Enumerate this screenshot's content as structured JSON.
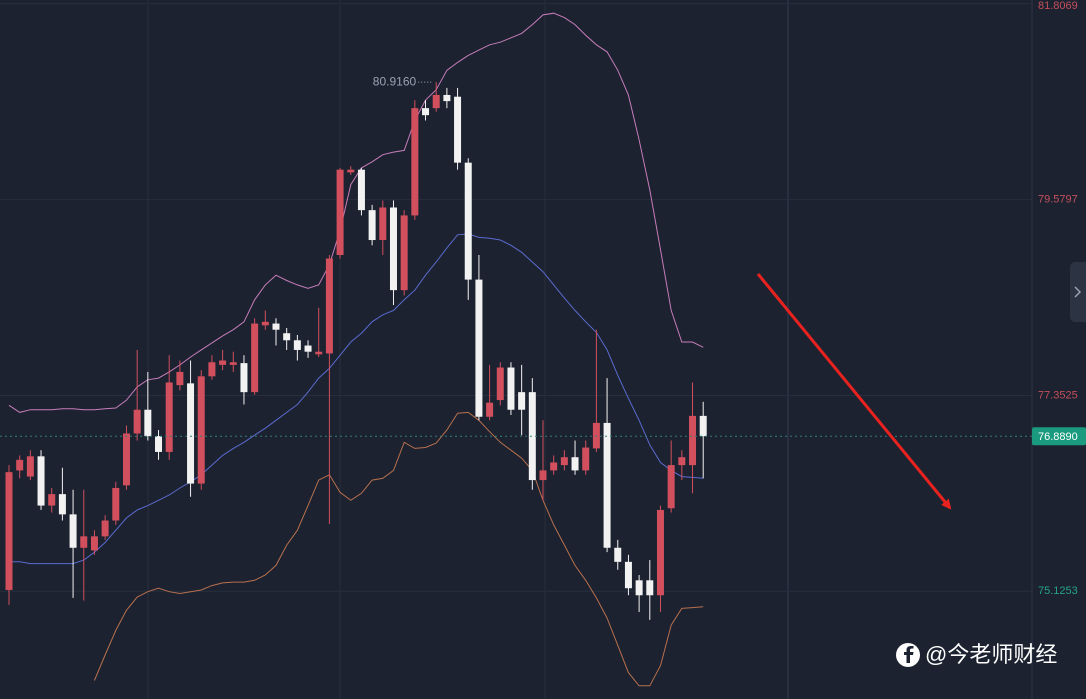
{
  "chart_data": {
    "type": "candlestick",
    "ylim": [
      73.9,
      81.85
    ],
    "yticks": [
      81.8069,
      79.5797,
      77.3525,
      75.1253
    ],
    "grid": true,
    "up_color": "#d24f5d",
    "down_color": "#f2f2f2",
    "up_tick_color": "#c4505c",
    "down_tick_color": "#25a387",
    "open": [
      75.14,
      76.5,
      76.43,
      76.66,
      76.1,
      76.23,
      76.0,
      75.62,
      75.59,
      75.75,
      75.93,
      76.33,
      76.92,
      77.19,
      76.89,
      76.71,
      77.47,
      77.49,
      76.35,
      77.57,
      77.7,
      77.7,
      77.72,
      77.39,
      78.15,
      78.17,
      78.06,
      77.98,
      77.92,
      77.82,
      77.83,
      78.95,
      79.89,
      79.92,
      79.46,
      79.12,
      79.49,
      78.55,
      79.4,
      80.62,
      80.62,
      80.77,
      80.75,
      80.0,
      78.67,
      77.11,
      77.3,
      77.67,
      77.39,
      77.39,
      76.39,
      76.5,
      76.56,
      76.65,
      76.5,
      76.75,
      77.04,
      75.62,
      75.46,
      75.25,
      75.25,
      75.08,
      76.07,
      76.56,
      76.56,
      77.12
    ],
    "high": [
      76.56,
      76.67,
      76.73,
      76.73,
      76.3,
      76.53,
      76.28,
      76.28,
      75.82,
      75.99,
      76.37,
      77.01,
      77.87,
      77.62,
      76.96,
      77.81,
      77.75,
      77.75,
      77.64,
      77.81,
      77.87,
      77.85,
      77.81,
      78.23,
      78.32,
      78.23,
      78.12,
      78.04,
      77.98,
      78.35,
      78.95,
      79.94,
      79.96,
      79.94,
      79.52,
      79.57,
      79.57,
      79.46,
      80.71,
      80.71,
      80.916,
      80.85,
      80.85,
      80.05,
      78.95,
      77.7,
      77.73,
      77.73,
      77.7,
      77.55,
      77.07,
      76.67,
      76.73,
      76.84,
      76.84,
      78.1,
      77.55,
      75.71,
      75.54,
      75.31,
      75.48,
      76.1,
      76.84,
      76.73,
      77.5,
      77.28
    ],
    "low": [
      74.97,
      76.41,
      76.39,
      76.05,
      76.02,
      75.93,
      75.05,
      75.02,
      75.54,
      75.71,
      75.88,
      76.28,
      76.84,
      76.84,
      76.62,
      76.62,
      77.41,
      76.2,
      76.28,
      77.53,
      77.64,
      77.62,
      77.25,
      77.36,
      78.1,
      77.92,
      77.87,
      77.75,
      77.78,
      77.79,
      75.89,
      78.91,
      79.86,
      79.4,
      79.06,
      78.95,
      78.38,
      78.49,
      79.35,
      80.48,
      80.58,
      80.62,
      79.92,
      78.44,
      77.07,
      77.07,
      77.24,
      77.13,
      76.9,
      76.28,
      76.16,
      76.45,
      76.5,
      76.45,
      76.45,
      76.71,
      75.57,
      75.37,
      75.08,
      74.89,
      74.8,
      74.89,
      76.02,
      76.39,
      76.24,
      76.41
    ],
    "close": [
      76.48,
      76.62,
      76.66,
      76.1,
      76.23,
      76.0,
      75.62,
      75.75,
      75.75,
      75.93,
      76.3,
      76.92,
      77.19,
      76.89,
      76.71,
      77.5,
      77.62,
      76.35,
      77.57,
      77.73,
      77.75,
      77.73,
      77.39,
      78.17,
      78.19,
      78.1,
      77.98,
      77.87,
      77.85,
      77.85,
      78.91,
      79.92,
      79.92,
      79.46,
      79.12,
      79.49,
      78.55,
      79.4,
      80.62,
      80.54,
      80.77,
      80.7,
      80.0,
      78.67,
      77.11,
      77.27,
      77.67,
      77.19,
      77.19,
      76.39,
      76.5,
      76.59,
      76.65,
      76.5,
      76.76,
      77.04,
      75.62,
      75.46,
      75.16,
      75.08,
      75.08,
      76.05,
      76.56,
      76.65,
      77.12,
      76.889
    ],
    "lines": [
      {
        "color": "#c77dba",
        "values": [
          77.24,
          77.16,
          77.19,
          77.19,
          77.19,
          77.2,
          77.2,
          77.19,
          77.19,
          77.2,
          77.21,
          77.3,
          77.45,
          77.53,
          77.55,
          77.62,
          77.7,
          77.79,
          77.87,
          77.95,
          78.03,
          78.1,
          78.19,
          78.44,
          78.61,
          78.72,
          78.66,
          78.61,
          78.57,
          78.61,
          78.84,
          79.23,
          79.75,
          79.94,
          80.01,
          80.09,
          80.12,
          80.14,
          80.48,
          80.71,
          80.83,
          81.05,
          81.14,
          81.22,
          81.28,
          81.34,
          81.37,
          81.42,
          81.47,
          81.57,
          81.68,
          81.7,
          81.65,
          81.57,
          81.45,
          81.34,
          81.26,
          81.05,
          80.77,
          80.26,
          79.69,
          79.01,
          78.32,
          77.96,
          77.96,
          77.9
        ]
      },
      {
        "color": "#5b6bd0",
        "values": [
          75.46,
          75.46,
          75.44,
          75.44,
          75.44,
          75.44,
          75.44,
          75.48,
          75.57,
          75.68,
          75.82,
          75.96,
          76.05,
          76.1,
          76.16,
          76.22,
          76.3,
          76.37,
          76.45,
          76.56,
          76.67,
          76.75,
          76.82,
          76.9,
          76.98,
          77.07,
          77.16,
          77.25,
          77.39,
          77.55,
          77.66,
          77.81,
          77.96,
          78.06,
          78.19,
          78.27,
          78.32,
          78.44,
          78.55,
          78.72,
          78.87,
          79.03,
          79.18,
          79.19,
          79.15,
          79.14,
          79.12,
          79.06,
          78.98,
          78.87,
          78.76,
          78.61,
          78.46,
          78.32,
          78.19,
          78.07,
          77.87,
          77.58,
          77.32,
          77.07,
          76.79,
          76.59,
          76.5,
          76.43,
          76.42,
          76.41
        ]
      },
      {
        "color": "#b8704e",
        "values": [
          null,
          null,
          null,
          null,
          null,
          null,
          null,
          null,
          74.11,
          74.4,
          74.68,
          74.91,
          75.06,
          75.12,
          75.16,
          75.12,
          75.1,
          75.12,
          75.14,
          75.19,
          75.22,
          75.23,
          75.23,
          75.25,
          75.31,
          75.42,
          75.65,
          75.82,
          76.1,
          76.39,
          76.45,
          76.25,
          76.16,
          76.24,
          76.39,
          76.41,
          76.5,
          76.82,
          76.75,
          76.76,
          76.81,
          76.96,
          77.15,
          77.16,
          77.07,
          76.94,
          76.82,
          76.73,
          76.64,
          76.5,
          76.16,
          75.88,
          75.65,
          75.42,
          75.25,
          75.05,
          74.82,
          74.51,
          74.2,
          74.05,
          74.05,
          74.28,
          74.74,
          74.93,
          74.94,
          74.95
        ]
      }
    ],
    "price_tag": {
      "value": 76.889,
      "label": "76.8890"
    },
    "high_label": {
      "value": 80.916,
      "label": "80.9160"
    }
  },
  "watermark": "@今老师财经"
}
